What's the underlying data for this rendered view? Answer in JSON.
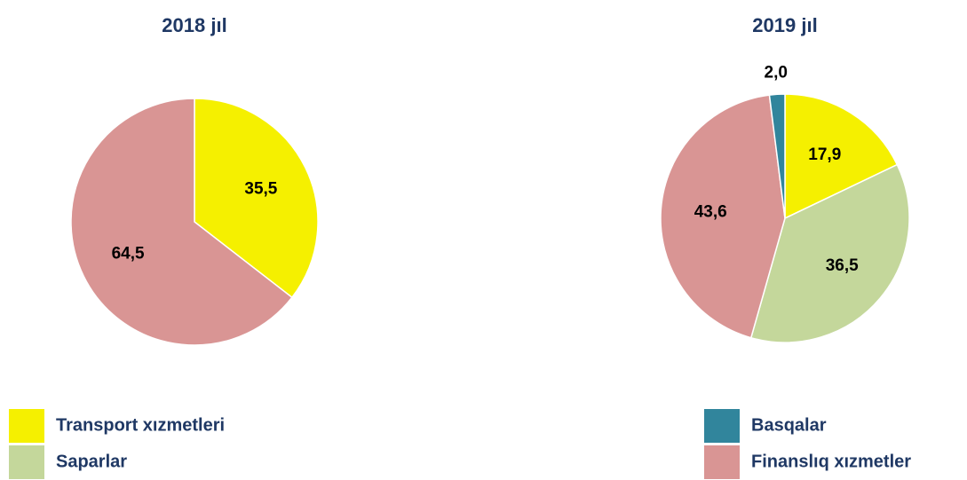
{
  "chart_data": [
    {
      "type": "pie",
      "title": "2018 jıl",
      "categories": [
        "Transport xızmetleri",
        "Finanslıq xızmetler"
      ],
      "values": [
        35.5,
        64.5
      ],
      "value_labels": [
        "35,5",
        "64,5"
      ],
      "colors": [
        "#f5f000",
        "#d99594"
      ]
    },
    {
      "type": "pie",
      "title": "2019 jıl",
      "categories": [
        "Transport xızmetleri",
        "Saparlar",
        "Finanslıq xızmetler",
        "Basqalar"
      ],
      "values": [
        17.9,
        36.5,
        43.6,
        2.0
      ],
      "value_labels": [
        "17,9",
        "36,5",
        "43,6",
        "2,0"
      ],
      "colors": [
        "#f5f000",
        "#c4d79b",
        "#d99594",
        "#31859c"
      ]
    }
  ],
  "legend": [
    {
      "name": "Transport xızmetleri",
      "color": "#f5f000"
    },
    {
      "name": "Saparlar",
      "color": "#c4d79b"
    },
    {
      "name": "Basqalar",
      "color": "#31859c"
    },
    {
      "name": "Finanslıq xızmetler",
      "color": "#d99594"
    }
  ]
}
